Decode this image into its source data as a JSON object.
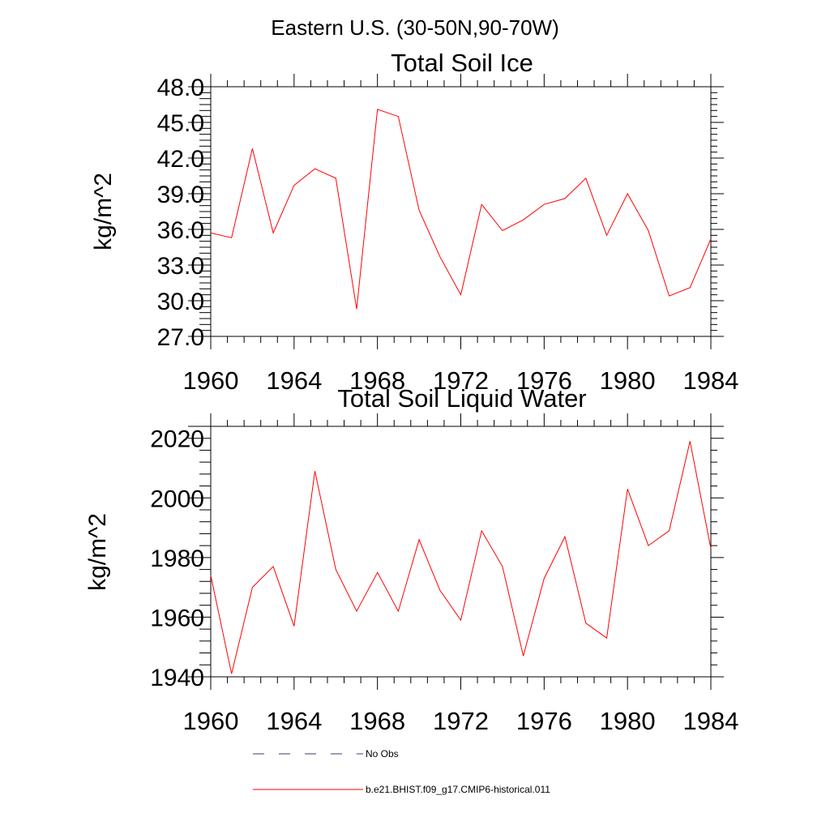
{
  "figure": {
    "title": "Eastern U.S. (30-50N,90-70W)"
  },
  "legend": [
    {
      "label": "No Obs",
      "color": "#3a3a6a",
      "style": "dashed"
    },
    {
      "label": "b.e21.BHIST.f09_g17.CMIP6-historical.011",
      "color": "#ff0000",
      "style": "solid"
    }
  ],
  "chart_data": [
    {
      "type": "line",
      "title": "Total Soil Ice",
      "xlabel": "",
      "ylabel": "kg/m^2",
      "xlim": [
        1960,
        1984
      ],
      "ylim": [
        27.0,
        48.0
      ],
      "x_ticks": [
        "1960",
        "1964",
        "1968",
        "1972",
        "1976",
        "1980",
        "1984"
      ],
      "y_ticks": [
        "27.0",
        "30.0",
        "33.0",
        "36.0",
        "39.0",
        "42.0",
        "45.0",
        "48.0"
      ],
      "grid": false,
      "series": [
        {
          "name": "b.e21.BHIST.f09_g17.CMIP6-historical.011",
          "color": "#ff0000",
          "x": [
            1960,
            1961,
            1962,
            1963,
            1964,
            1965,
            1966,
            1967,
            1968,
            1969,
            1970,
            1971,
            1972,
            1973,
            1974,
            1975,
            1976,
            1977,
            1978,
            1979,
            1980,
            1981,
            1982,
            1983,
            1984
          ],
          "values": [
            35.7,
            35.3,
            42.8,
            35.7,
            39.7,
            41.1,
            40.3,
            29.3,
            46.1,
            45.5,
            37.6,
            33.7,
            30.5,
            38.1,
            35.9,
            36.8,
            38.1,
            38.6,
            40.3,
            35.5,
            39.0,
            35.9,
            30.4,
            31.1,
            35.2
          ]
        }
      ]
    },
    {
      "type": "line",
      "title": "Total Soil Liquid Water",
      "xlabel": "",
      "ylabel": "kg/m^2",
      "xlim": [
        1960,
        1984
      ],
      "ylim": [
        1940,
        2024
      ],
      "x_ticks": [
        "1960",
        "1964",
        "1968",
        "1972",
        "1976",
        "1980",
        "1984"
      ],
      "y_ticks": [
        "1940",
        "1960",
        "1980",
        "2000",
        "2020"
      ],
      "grid": false,
      "series": [
        {
          "name": "b.e21.BHIST.f09_g17.CMIP6-historical.011",
          "color": "#ff0000",
          "x": [
            1960,
            1961,
            1962,
            1963,
            1964,
            1965,
            1966,
            1967,
            1968,
            1969,
            1970,
            1971,
            1972,
            1973,
            1974,
            1975,
            1976,
            1977,
            1978,
            1979,
            1980,
            1981,
            1982,
            1983,
            1984
          ],
          "values": [
            1974,
            1941,
            1970,
            1977,
            1957,
            2009,
            1976,
            1962,
            1975,
            1962,
            1986,
            1969,
            1959,
            1989,
            1977,
            1947,
            1973,
            1987,
            1958,
            1953,
            2003,
            1984,
            1989,
            2019,
            1983
          ]
        }
      ]
    }
  ]
}
